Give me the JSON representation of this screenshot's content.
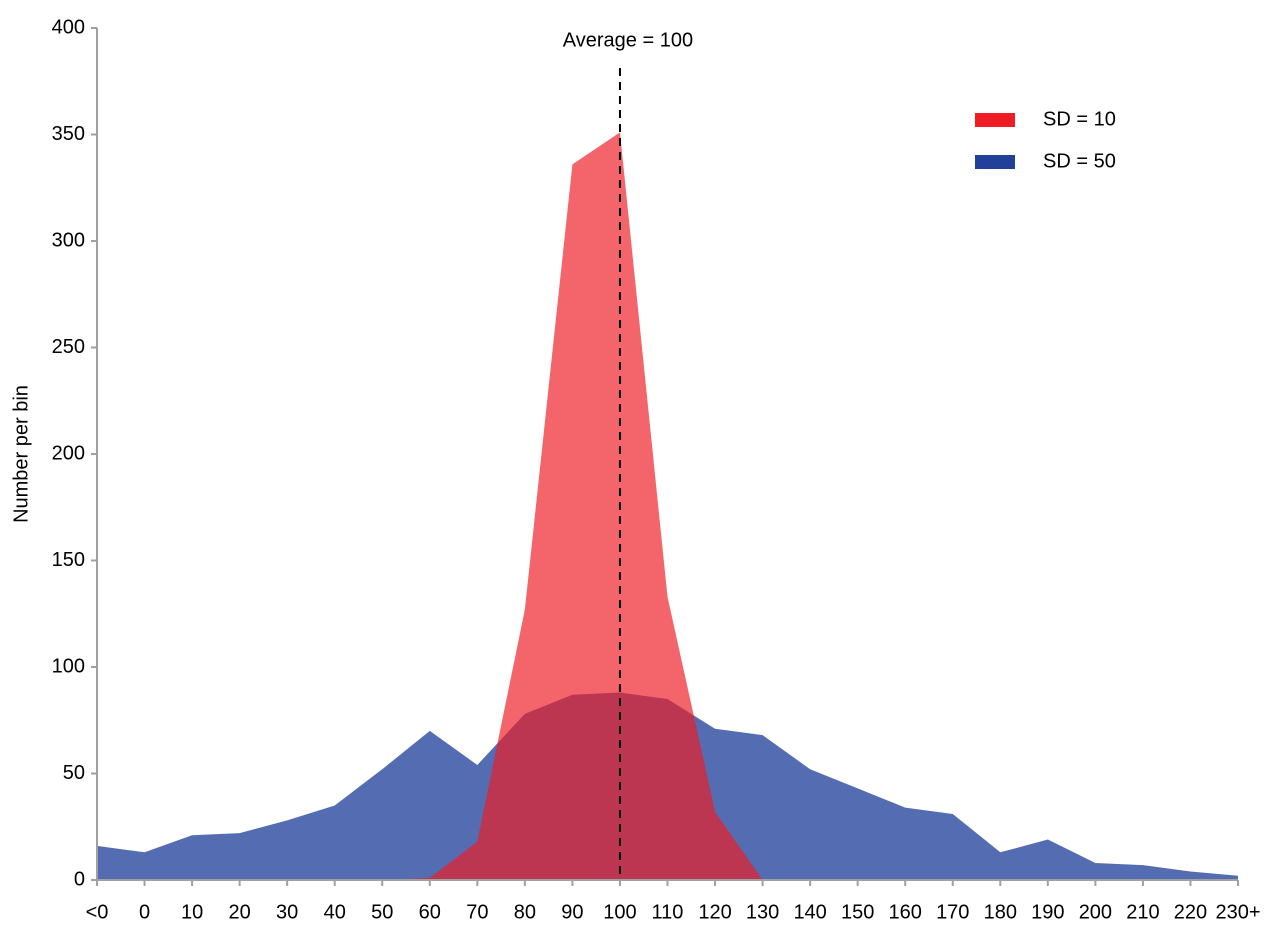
{
  "chart_data": {
    "type": "area",
    "y_label": "Number per bin",
    "categories": [
      "<0",
      "0",
      "10",
      "20",
      "30",
      "40",
      "50",
      "60",
      "70",
      "80",
      "90",
      "100",
      "110",
      "120",
      "130",
      "140",
      "150",
      "160",
      "170",
      "180",
      "190",
      "200",
      "210",
      "220",
      "230+"
    ],
    "series": [
      {
        "name": "SD = 50",
        "color": "#21409a",
        "values": [
          16,
          13,
          21,
          22,
          28,
          35,
          52,
          70,
          54,
          78,
          87,
          88,
          85,
          71,
          68,
          52,
          43,
          34,
          31,
          13,
          19,
          8,
          7,
          4,
          2
        ]
      },
      {
        "name": "SD = 10",
        "color": "#ee1c25",
        "values": [
          0,
          0,
          0,
          0,
          0,
          0,
          0,
          1,
          18,
          127,
          336,
          351,
          133,
          32,
          0,
          0,
          0,
          0,
          0,
          0,
          0,
          0,
          0,
          0,
          0
        ]
      }
    ],
    "legend_order": [
      1,
      0
    ],
    "legend_position": "upper right",
    "ylim": [
      0,
      400
    ],
    "yticks": [
      0,
      50,
      100,
      150,
      200,
      250,
      300,
      350,
      400
    ],
    "grid": false,
    "annotations": [
      {
        "text": "Average = 100",
        "category": "100"
      }
    ]
  }
}
